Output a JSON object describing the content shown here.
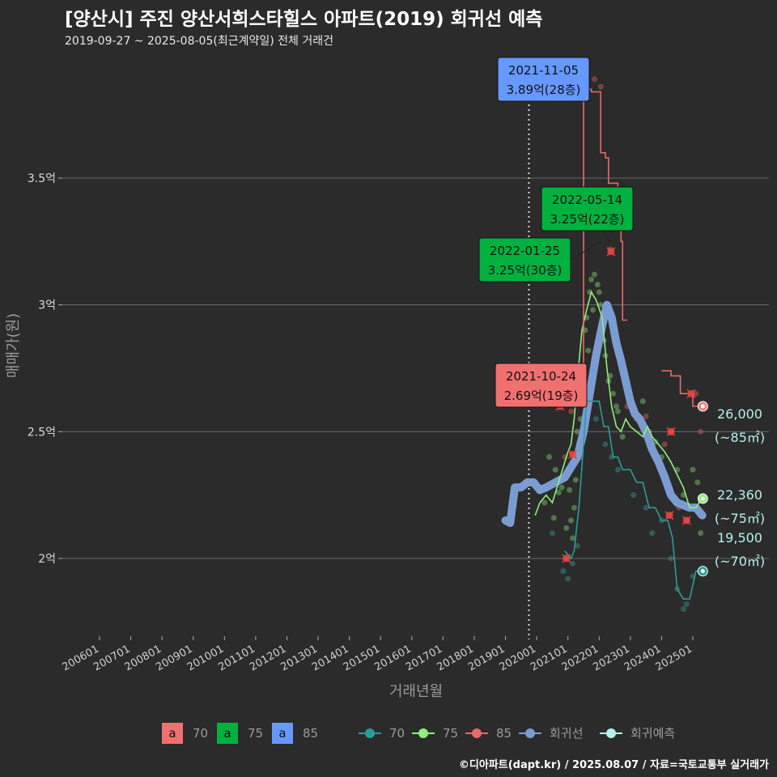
{
  "header": {
    "title": "[양산시] 주진 양산서희스타힐스 아파트(2019) 회귀선 예측",
    "subtitle": "2019-09-27 ~ 2025-08-05(최근계약일) 전체 거래건"
  },
  "footer": "©디아파트(dapt.kr) / 2025.08.07 / 자료=국토교통부 실거래가",
  "chart_data": {
    "type": "line",
    "xlabel": "거래년월",
    "ylabel": "매매가(원)",
    "x_range": [
      2005.5,
      2026.0
    ],
    "ylim": [
      1.65,
      4.0
    ],
    "x_ticks": [
      {
        "label": "200601",
        "value": 2006.0
      },
      {
        "label": "200701",
        "value": 2007.0
      },
      {
        "label": "200801",
        "value": 2008.0
      },
      {
        "label": "200901",
        "value": 2009.0
      },
      {
        "label": "201001",
        "value": 2010.0
      },
      {
        "label": "201101",
        "value": 2011.0
      },
      {
        "label": "201201",
        "value": 2012.0
      },
      {
        "label": "201301",
        "value": 2013.0
      },
      {
        "label": "201401",
        "value": 2014.0
      },
      {
        "label": "201501",
        "value": 2015.0
      },
      {
        "label": "201601",
        "value": 2016.0
      },
      {
        "label": "201701",
        "value": 2017.0
      },
      {
        "label": "201801",
        "value": 2018.0
      },
      {
        "label": "201901",
        "value": 2019.0
      },
      {
        "label": "202001",
        "value": 2020.0
      },
      {
        "label": "202101",
        "value": 2021.0
      },
      {
        "label": "202201",
        "value": 2022.0
      },
      {
        "label": "202301",
        "value": 2023.0
      },
      {
        "label": "202401",
        "value": 2024.0
      },
      {
        "label": "202501",
        "value": 2025.0
      }
    ],
    "y_ticks": [
      {
        "label": "2억",
        "value": 2.0
      },
      {
        "label": "2.5억",
        "value": 2.5
      },
      {
        "label": "3억",
        "value": 3.0
      },
      {
        "label": "3.5억",
        "value": 3.5
      }
    ],
    "reference_line_x": 2019.75,
    "series": [
      {
        "name": "70",
        "color": "#2a9d9a",
        "points": [
          [
            2020.9,
            2.03
          ],
          [
            2021.1,
            2.0
          ],
          [
            2021.2,
            2.03
          ],
          [
            2021.35,
            2.2
          ],
          [
            2021.5,
            2.45
          ],
          [
            2021.6,
            2.62
          ],
          [
            2022.0,
            2.62
          ],
          [
            2022.15,
            2.52
          ],
          [
            2022.3,
            2.52
          ],
          [
            2022.45,
            2.4
          ],
          [
            2022.6,
            2.4
          ],
          [
            2022.75,
            2.35
          ],
          [
            2023.0,
            2.35
          ],
          [
            2023.2,
            2.3
          ],
          [
            2023.4,
            2.3
          ],
          [
            2023.6,
            2.2
          ],
          [
            2023.8,
            2.2
          ],
          [
            2024.0,
            2.15
          ],
          [
            2024.2,
            2.15
          ],
          [
            2024.35,
            2.08
          ],
          [
            2024.5,
            1.88
          ],
          [
            2024.7,
            1.84
          ],
          [
            2024.9,
            1.84
          ],
          [
            2025.1,
            1.95
          ],
          [
            2025.3,
            1.95
          ]
        ]
      },
      {
        "name": "75",
        "color": "#90ee7e",
        "points": [
          [
            2019.95,
            2.17
          ],
          [
            2020.1,
            2.22
          ],
          [
            2020.3,
            2.25
          ],
          [
            2020.5,
            2.22
          ],
          [
            2020.7,
            2.3
          ],
          [
            2020.9,
            2.38
          ],
          [
            2021.0,
            2.42
          ],
          [
            2021.1,
            2.45
          ],
          [
            2021.2,
            2.55
          ],
          [
            2021.3,
            2.7
          ],
          [
            2021.45,
            2.9
          ],
          [
            2021.6,
            2.98
          ],
          [
            2021.75,
            3.05
          ],
          [
            2021.9,
            3.02
          ],
          [
            2022.1,
            2.95
          ],
          [
            2022.25,
            2.75
          ],
          [
            2022.4,
            2.6
          ],
          [
            2022.55,
            2.52
          ],
          [
            2022.7,
            2.5
          ],
          [
            2022.85,
            2.55
          ],
          [
            2023.0,
            2.52
          ],
          [
            2023.2,
            2.5
          ],
          [
            2023.4,
            2.48
          ],
          [
            2023.55,
            2.52
          ],
          [
            2023.7,
            2.48
          ],
          [
            2023.9,
            2.45
          ],
          [
            2024.1,
            2.42
          ],
          [
            2024.3,
            2.38
          ],
          [
            2024.5,
            2.33
          ],
          [
            2024.7,
            2.28
          ],
          [
            2024.9,
            2.2
          ],
          [
            2025.1,
            2.2
          ],
          [
            2025.3,
            2.24
          ]
        ]
      },
      {
        "name": "85",
        "color": "#e8696a",
        "steps": [
          [
            [
              2021.3,
              2.7
            ],
            [
              2021.45,
              2.7
            ],
            [
              2021.5,
              3.85
            ],
            [
              2021.7,
              3.85
            ],
            [
              2021.75,
              3.84
            ],
            [
              2022.0,
              3.84
            ],
            [
              2022.05,
              3.6
            ],
            [
              2022.2,
              3.58
            ],
            [
              2022.3,
              3.48
            ],
            [
              2022.45,
              3.48
            ],
            [
              2022.6,
              3.3
            ],
            [
              2022.7,
              3.25
            ],
            [
              2022.75,
              2.94
            ],
            [
              2022.9,
              2.94
            ]
          ],
          [
            [
              2024.0,
              2.74
            ],
            [
              2024.25,
              2.74
            ],
            [
              2024.3,
              2.72
            ],
            [
              2024.5,
              2.72
            ],
            [
              2024.6,
              2.65
            ],
            [
              2024.9,
              2.65
            ],
            [
              2025.0,
              2.6
            ],
            [
              2025.3,
              2.6
            ]
          ]
        ]
      },
      {
        "name": "회귀선",
        "color": "#7b9cd1",
        "points": [
          [
            2019.0,
            2.15
          ],
          [
            2019.15,
            2.14
          ],
          [
            2019.3,
            2.28
          ],
          [
            2019.5,
            2.28
          ],
          [
            2019.7,
            2.3
          ],
          [
            2019.9,
            2.3
          ],
          [
            2020.1,
            2.27
          ],
          [
            2020.3,
            2.28
          ],
          [
            2020.6,
            2.3
          ],
          [
            2020.9,
            2.32
          ],
          [
            2021.1,
            2.36
          ],
          [
            2021.3,
            2.4
          ],
          [
            2021.5,
            2.5
          ],
          [
            2021.7,
            2.65
          ],
          [
            2021.9,
            2.8
          ],
          [
            2022.1,
            2.92
          ],
          [
            2022.25,
            3.0
          ],
          [
            2022.4,
            2.95
          ],
          [
            2022.55,
            2.85
          ],
          [
            2022.7,
            2.78
          ],
          [
            2022.85,
            2.7
          ],
          [
            2023.0,
            2.62
          ],
          [
            2023.15,
            2.57
          ],
          [
            2023.3,
            2.55
          ],
          [
            2023.5,
            2.5
          ],
          [
            2023.7,
            2.43
          ],
          [
            2023.9,
            2.38
          ],
          [
            2024.1,
            2.32
          ],
          [
            2024.3,
            2.25
          ],
          [
            2024.5,
            2.22
          ],
          [
            2024.7,
            2.21
          ],
          [
            2024.9,
            2.2
          ],
          [
            2025.1,
            2.2
          ],
          [
            2025.3,
            2.17
          ]
        ]
      }
    ],
    "endpoints": [
      {
        "series": "85",
        "x": 2025.32,
        "y": 2.6,
        "color": "#f08080",
        "value_label": "26,000",
        "area_label": "(~85㎡)"
      },
      {
        "series": "75",
        "x": 2025.32,
        "y": 2.236,
        "color": "#90ee7e",
        "value_label": "22,360",
        "area_label": "(~75㎡)"
      },
      {
        "series": "70",
        "x": 2025.32,
        "y": 1.95,
        "color": "#2a9d9a",
        "value_label": "19,500",
        "area_label": "(~70㎡)"
      }
    ],
    "annotations": [
      {
        "date": "2021-11-05",
        "price": "3.89억(28층)",
        "color": "#6699ff",
        "x": 2021.85,
        "y": 3.89
      },
      {
        "date": "2022-05-14",
        "price": "3.25억(22층)",
        "color": "#00b140",
        "x": 2022.36,
        "y": 3.25
      },
      {
        "date": "2022-01-25",
        "price": "3.25억(30층)",
        "color": "#00b140",
        "x": 2022.07,
        "y": 3.25
      },
      {
        "date": "2021-10-24",
        "price": "2.69억(19층)",
        "color": "#f07070",
        "x": 2021.8,
        "y": 2.69
      }
    ],
    "scatter": [
      {
        "area": "75",
        "points": [
          [
            2020.4,
            2.4
          ],
          [
            2020.6,
            2.35
          ],
          [
            2020.8,
            2.28
          ],
          [
            2021.0,
            2.33
          ],
          [
            2021.05,
            2.27
          ],
          [
            2021.1,
            2.15
          ],
          [
            2021.2,
            2.2
          ],
          [
            2021.3,
            2.5
          ],
          [
            2021.35,
            2.45
          ],
          [
            2021.4,
            2.55
          ],
          [
            2021.5,
            2.75
          ],
          [
            2021.55,
            2.9
          ],
          [
            2021.6,
            2.95
          ],
          [
            2021.7,
            3.05
          ],
          [
            2021.75,
            3.1
          ],
          [
            2021.8,
            2.98
          ],
          [
            2021.85,
            3.12
          ],
          [
            2022.0,
            3.05
          ],
          [
            2022.1,
            2.9
          ],
          [
            2022.2,
            2.8
          ],
          [
            2022.3,
            2.7
          ],
          [
            2022.45,
            2.65
          ],
          [
            2022.6,
            2.58
          ],
          [
            2022.75,
            2.48
          ],
          [
            2023.0,
            2.6
          ],
          [
            2023.2,
            2.55
          ],
          [
            2023.4,
            2.62
          ],
          [
            2023.6,
            2.5
          ],
          [
            2023.8,
            2.46
          ],
          [
            2024.0,
            2.4
          ],
          [
            2024.2,
            2.3
          ],
          [
            2024.5,
            2.35
          ],
          [
            2024.7,
            2.25
          ],
          [
            2024.85,
            2.2
          ],
          [
            2025.0,
            2.35
          ],
          [
            2025.15,
            2.3
          ],
          [
            2025.25,
            2.1
          ],
          [
            2020.55,
            2.16
          ],
          [
            2020.95,
            2.12
          ],
          [
            2021.15,
            2.08
          ],
          [
            2020.25,
            2.22
          ],
          [
            2020.7,
            2.26
          ],
          [
            2021.25,
            2.31
          ],
          [
            2021.45,
            2.68
          ],
          [
            2021.65,
            2.82
          ],
          [
            2022.05,
            3.0
          ],
          [
            2022.15,
            2.86
          ],
          [
            2022.35,
            2.72
          ],
          [
            2022.55,
            2.6
          ],
          [
            2021.95,
            3.08
          ]
        ]
      },
      {
        "area": "70",
        "points": [
          [
            2020.85,
            1.95
          ],
          [
            2021.0,
            1.92
          ],
          [
            2021.15,
            1.98
          ],
          [
            2021.4,
            2.4
          ],
          [
            2021.6,
            2.58
          ],
          [
            2021.9,
            2.55
          ],
          [
            2022.2,
            2.45
          ],
          [
            2022.6,
            2.35
          ],
          [
            2023.1,
            2.25
          ],
          [
            2023.5,
            2.2
          ],
          [
            2024.0,
            2.15
          ],
          [
            2024.3,
            2.0
          ],
          [
            2024.5,
            1.88
          ],
          [
            2024.7,
            1.8
          ],
          [
            2024.8,
            1.82
          ],
          [
            2025.0,
            1.93
          ],
          [
            2020.5,
            2.1
          ],
          [
            2021.3,
            2.05
          ],
          [
            2022.4,
            2.4
          ],
          [
            2023.7,
            2.1
          ]
        ]
      },
      {
        "area": "85",
        "points": [
          [
            2020.9,
            2.4
          ],
          [
            2021.4,
            2.72
          ],
          [
            2021.85,
            3.89
          ],
          [
            2022.05,
            3.86
          ],
          [
            2022.36,
            3.22
          ],
          [
            2022.9,
            2.6
          ],
          [
            2023.5,
            2.56
          ],
          [
            2024.1,
            2.45
          ],
          [
            2024.3,
            2.5
          ],
          [
            2024.55,
            2.2
          ],
          [
            2025.1,
            2.65
          ],
          [
            2025.25,
            2.5
          ],
          [
            2024.8,
            2.15
          ],
          [
            2021.1,
            2.58
          ]
        ]
      }
    ],
    "x_markers": [
      [
        2020.75,
        2.6
      ],
      [
        2021.15,
        2.41
      ],
      [
        2020.95,
        2.0
      ],
      [
        2022.38,
        3.21
      ],
      [
        2024.3,
        2.5
      ],
      [
        2024.25,
        2.17
      ],
      [
        2024.8,
        2.15
      ],
      [
        2024.95,
        2.65
      ]
    ],
    "legend": {
      "label_items": [
        {
          "key": "a",
          "label": "70",
          "color": "#f07070"
        },
        {
          "key": "a",
          "label": "75",
          "color": "#00b140"
        },
        {
          "key": "a",
          "label": "85",
          "color": "#6699ff"
        }
      ],
      "line_items": [
        {
          "label": "70",
          "color": "#2a9d9a"
        },
        {
          "label": "75",
          "color": "#90ee7e"
        },
        {
          "label": "85",
          "color": "#e8696a"
        },
        {
          "label": "회귀선",
          "color": "#7b9cd1"
        },
        {
          "label": "회귀예측",
          "color": "#b5f0ec"
        }
      ]
    }
  }
}
